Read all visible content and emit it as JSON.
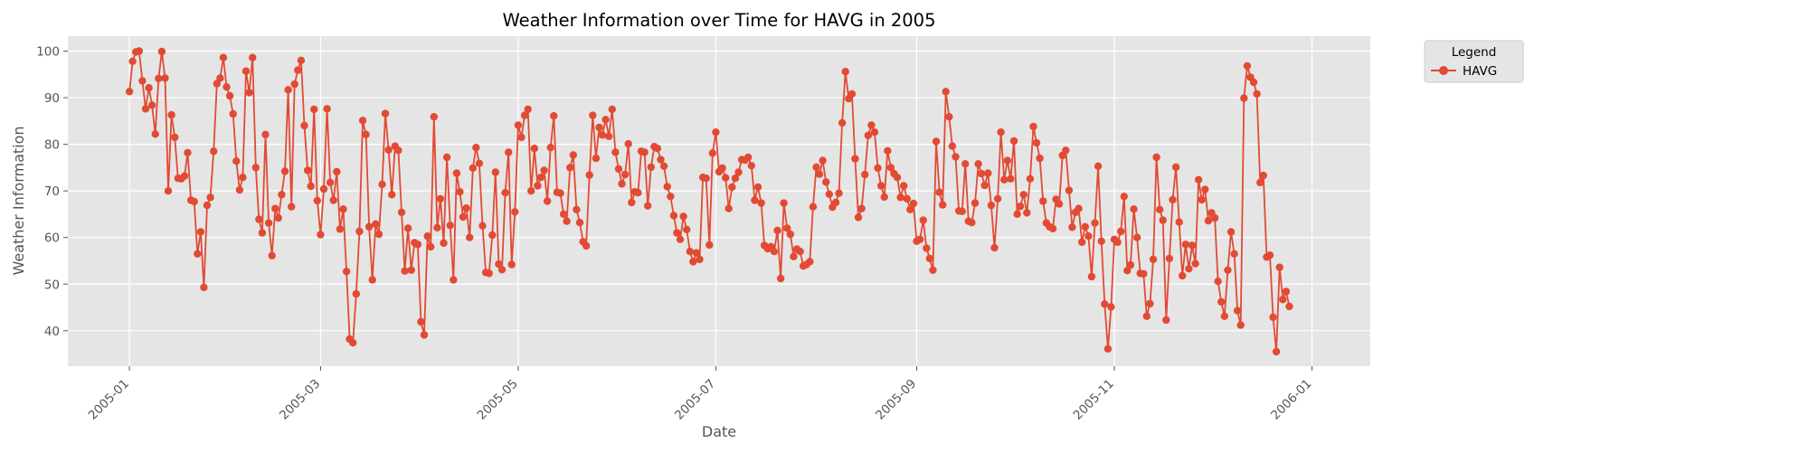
{
  "chart_data": {
    "type": "line",
    "title": "Weather Information over Time for HAVG in 2005",
    "xlabel": "Date",
    "ylabel": "Weather Information",
    "xlim": [
      "2004-12-13",
      "2006-01-19"
    ],
    "ylim": [
      32.4,
      103.2
    ],
    "x_ticks": [
      "2005-01",
      "2005-03",
      "2005-05",
      "2005-07",
      "2005-09",
      "2005-11",
      "2006-01"
    ],
    "y_ticks": [
      40,
      50,
      60,
      70,
      80,
      90,
      100
    ],
    "grid": true,
    "legend": {
      "title": "Legend",
      "placement": "outside-top-right"
    },
    "colors": {
      "series": "#E24A33",
      "plot_bg": "#E5E5E5",
      "grid": "#FFFFFF"
    },
    "series": [
      {
        "name": "HAVG",
        "start_date": "2005-01-01",
        "interval": "daily",
        "values": [
          91.3,
          97.8,
          99.8,
          100.0,
          93.6,
          87.6,
          92.1,
          88.4,
          82.2,
          94.1,
          99.9,
          94.2,
          70.0,
          86.3,
          81.5,
          72.7,
          72.6,
          73.2,
          78.2,
          68.0,
          67.7,
          56.5,
          61.2,
          49.3,
          66.9,
          68.6,
          78.5,
          93.0,
          94.2,
          98.6,
          92.3,
          90.4,
          86.5,
          76.4,
          70.2,
          72.9,
          95.7,
          91.1,
          98.6,
          75.0,
          63.9,
          61.0,
          82.1,
          63.1,
          56.1,
          66.2,
          64.2,
          69.2,
          74.2,
          91.7,
          66.6,
          92.9,
          95.9,
          98.0,
          84.0,
          74.4,
          71.0,
          87.5,
          67.9,
          60.6,
          70.4,
          87.6,
          71.8,
          68.0,
          74.1,
          61.8,
          66.1,
          52.7,
          38.2,
          37.4,
          47.9,
          61.3,
          85.1,
          82.1,
          62.3,
          50.9,
          62.9,
          60.7,
          71.4,
          86.6,
          78.8,
          69.2,
          79.6,
          78.7,
          65.4,
          52.8,
          62.0,
          53.0,
          58.9,
          58.5,
          41.9,
          39.1,
          60.3,
          58.0,
          85.9,
          62.1,
          68.3,
          58.8,
          77.2,
          62.6,
          50.9,
          73.8,
          69.8,
          64.4,
          66.3,
          60.0,
          74.9,
          79.3,
          75.9,
          62.5,
          52.5,
          52.3,
          60.5,
          74.0,
          54.3,
          53.1,
          69.6,
          78.3,
          54.2,
          65.5,
          84.1,
          81.5,
          86.2,
          87.5,
          70.0,
          79.1,
          71.1,
          72.9,
          74.4,
          67.8,
          79.3,
          86.1,
          69.7,
          69.5,
          65.0,
          63.5,
          75.0,
          77.7,
          66.0,
          63.2,
          59.1,
          58.2,
          73.4,
          86.2,
          77.0,
          83.6,
          82.0,
          85.3,
          81.7,
          87.5,
          78.3,
          74.7,
          71.5,
          73.5,
          80.1,
          67.5,
          69.8,
          69.6,
          78.5,
          78.3,
          66.8,
          75.1,
          79.5,
          79.1,
          76.7,
          75.3,
          70.9,
          68.8,
          64.7,
          61.0,
          59.6,
          64.5,
          61.7,
          57.0,
          54.8,
          56.7,
          55.3,
          72.9,
          72.7,
          58.4,
          78.1,
          82.6,
          74.1,
          74.9,
          72.8,
          66.2,
          70.8,
          72.7,
          74.0,
          76.7,
          76.6,
          77.2,
          75.4,
          68.0,
          70.8,
          67.4,
          58.3,
          57.6,
          58.0,
          57.0,
          61.5,
          51.2,
          67.4,
          62.0,
          60.7,
          55.9,
          57.5,
          57.0,
          53.9,
          54.2,
          54.8,
          66.6,
          75.1,
          73.6,
          76.5,
          71.9,
          69.3,
          66.5,
          67.5,
          69.5,
          84.6,
          95.6,
          89.8,
          90.8,
          76.9,
          64.3,
          66.2,
          73.5,
          81.9,
          84.1,
          82.6,
          74.9,
          71.1,
          68.7,
          78.6,
          75.0,
          73.7,
          72.9,
          68.6,
          71.1,
          68.3,
          66.0,
          67.3,
          59.2,
          59.6,
          63.7,
          57.7,
          55.5,
          53.0,
          80.6,
          69.7,
          67.0,
          91.3,
          85.9,
          79.6,
          77.3,
          65.7,
          65.6,
          75.8,
          63.5,
          63.2,
          67.4,
          75.8,
          73.7,
          71.2,
          73.8,
          66.9,
          57.8,
          68.3,
          82.6,
          72.4,
          76.5,
          72.6,
          80.7,
          65.0,
          66.7,
          69.2,
          65.3,
          72.6,
          83.8,
          80.3,
          77.0,
          67.8,
          63.1,
          62.3,
          61.9,
          68.2,
          67.2,
          77.6,
          78.7,
          70.1,
          62.2,
          65.4,
          66.2,
          59.0,
          62.3,
          60.3,
          51.6,
          63.1,
          75.3,
          59.2,
          45.7,
          36.1,
          45.1,
          59.6,
          59.0,
          61.3,
          68.8,
          52.9,
          54.1,
          66.1,
          60.0,
          52.3,
          52.2,
          43.1,
          45.8,
          55.3,
          77.2,
          66.0,
          63.7,
          42.3,
          55.5,
          68.1,
          75.1,
          63.3,
          51.8,
          58.5,
          53.3,
          58.3,
          54.4,
          72.4,
          68.1,
          70.3,
          63.6,
          65.3,
          64.2,
          50.6,
          46.2,
          43.1,
          53.0,
          61.2,
          56.5,
          44.3,
          41.2,
          89.9,
          96.8,
          94.4,
          93.3,
          90.8,
          71.8,
          73.3,
          55.8,
          56.2,
          42.9,
          35.5,
          53.6,
          46.7,
          48.4,
          45.2
        ]
      }
    ]
  }
}
